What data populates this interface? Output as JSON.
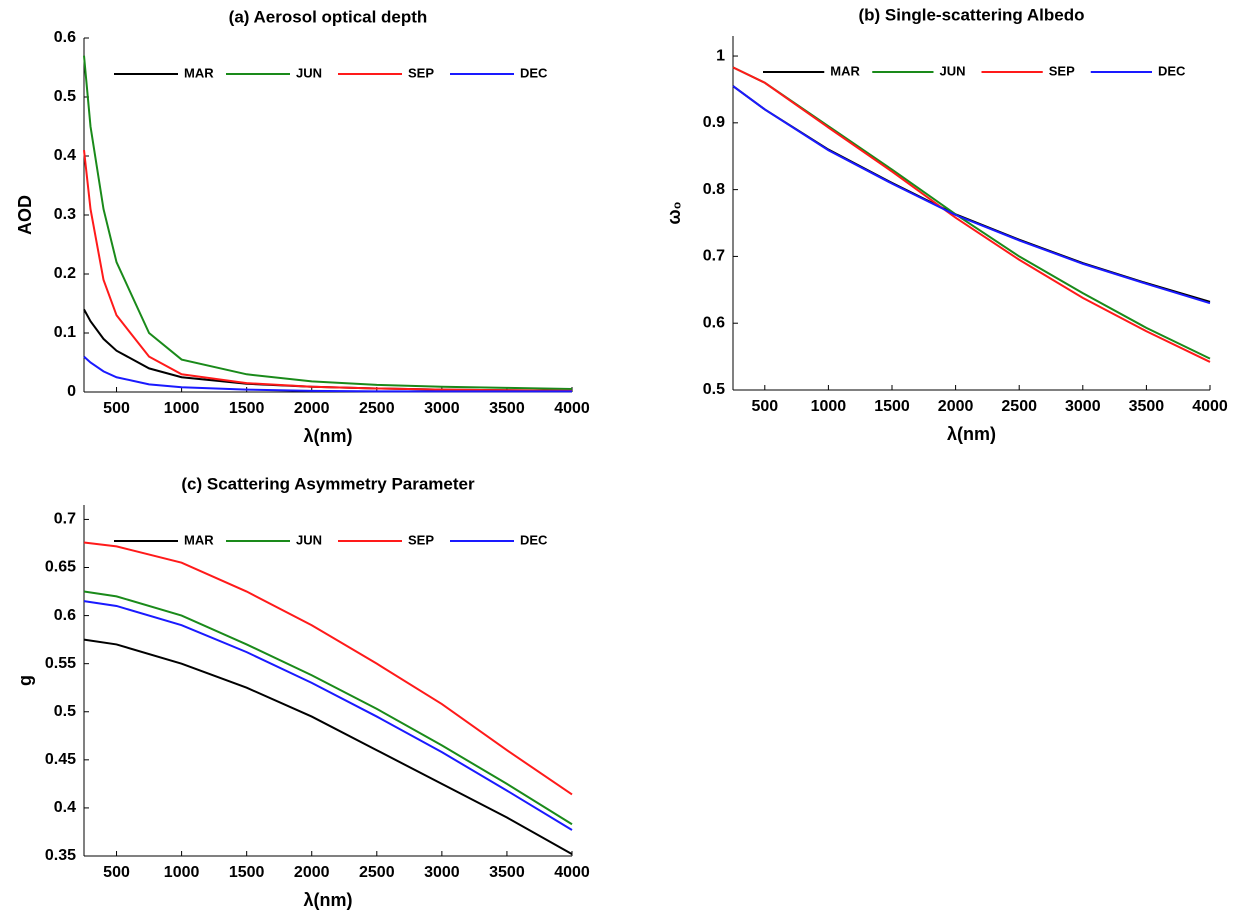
{
  "chart_data": [
    {
      "type": "line",
      "title": "(a) Aerosol optical depth",
      "xlabel": "λ(nm)",
      "ylabel": "AOD",
      "legend": "top",
      "x": [
        250,
        300,
        400,
        500,
        750,
        1000,
        1500,
        2000,
        2500,
        3000,
        3500,
        4000
      ],
      "series": [
        {
          "name": "MAR",
          "color": "#000000",
          "values": [
            0.14,
            0.12,
            0.09,
            0.07,
            0.04,
            0.025,
            0.014,
            0.009,
            0.006,
            0.004,
            0.003,
            0.002
          ]
        },
        {
          "name": "JUN",
          "color": "#1a8a1a",
          "values": [
            0.57,
            0.45,
            0.31,
            0.22,
            0.1,
            0.055,
            0.03,
            0.018,
            0.012,
            0.009,
            0.007,
            0.005
          ]
        },
        {
          "name": "SEP",
          "color": "#ff1a1a",
          "values": [
            0.41,
            0.31,
            0.19,
            0.13,
            0.06,
            0.03,
            0.015,
            0.009,
            0.006,
            0.004,
            0.003,
            0.002
          ]
        },
        {
          "name": "DEC",
          "color": "#1a1aff",
          "values": [
            0.06,
            0.05,
            0.035,
            0.025,
            0.013,
            0.008,
            0.004,
            0.002,
            0.001,
            0.001,
            0.001,
            0.001
          ]
        }
      ],
      "xlim": [
        250,
        4000
      ],
      "ylim": [
        0,
        0.6
      ],
      "xticks": [
        500,
        1000,
        1500,
        2000,
        2500,
        3000,
        3500,
        4000
      ],
      "yticks": [
        0,
        0.1,
        0.2,
        0.3,
        0.4,
        0.5,
        0.6
      ]
    },
    {
      "type": "line",
      "title": "(b)  Single-scattering Albedo",
      "xlabel": "λ(nm)",
      "ylabel": "ω₀",
      "legend": "top",
      "x": [
        250,
        500,
        1000,
        1500,
        2000,
        2500,
        3000,
        3500,
        4000
      ],
      "series": [
        {
          "name": "MAR",
          "color": "#000000",
          "values": [
            0.955,
            0.92,
            0.86,
            0.81,
            0.763,
            0.725,
            0.69,
            0.66,
            0.632
          ]
        },
        {
          "name": "JUN",
          "color": "#1a8a1a",
          "values": [
            0.983,
            0.96,
            0.895,
            0.83,
            0.763,
            0.7,
            0.645,
            0.593,
            0.547
          ]
        },
        {
          "name": "SEP",
          "color": "#ff1a1a",
          "values": [
            0.983,
            0.96,
            0.893,
            0.827,
            0.758,
            0.695,
            0.638,
            0.588,
            0.542
          ]
        },
        {
          "name": "DEC",
          "color": "#1a1aff",
          "values": [
            0.955,
            0.92,
            0.859,
            0.809,
            0.762,
            0.724,
            0.689,
            0.659,
            0.63
          ]
        }
      ],
      "xlim": [
        250,
        4000
      ],
      "ylim": [
        0.5,
        1.03
      ],
      "xticks": [
        500,
        1000,
        1500,
        2000,
        2500,
        3000,
        3500,
        4000
      ],
      "yticks": [
        0.5,
        0.6,
        0.7,
        0.8,
        0.9,
        1
      ]
    },
    {
      "type": "line",
      "title": "(c)  Scattering Asymmetry Parameter",
      "xlabel": "λ(nm)",
      "ylabel": "g",
      "legend": "top",
      "x": [
        250,
        500,
        1000,
        1500,
        2000,
        2500,
        3000,
        3500,
        4000
      ],
      "series": [
        {
          "name": "MAR",
          "color": "#000000",
          "values": [
            0.575,
            0.57,
            0.55,
            0.525,
            0.495,
            0.46,
            0.425,
            0.39,
            0.352
          ]
        },
        {
          "name": "JUN",
          "color": "#1a8a1a",
          "values": [
            0.625,
            0.62,
            0.6,
            0.57,
            0.538,
            0.503,
            0.465,
            0.425,
            0.383
          ]
        },
        {
          "name": "SEP",
          "color": "#ff1a1a",
          "values": [
            0.676,
            0.672,
            0.655,
            0.625,
            0.59,
            0.55,
            0.508,
            0.46,
            0.414
          ]
        },
        {
          "name": "DEC",
          "color": "#1a1aff",
          "values": [
            0.615,
            0.61,
            0.59,
            0.562,
            0.53,
            0.495,
            0.458,
            0.418,
            0.377
          ]
        }
      ],
      "xlim": [
        250,
        4000
      ],
      "ylim": [
        0.35,
        0.715
      ],
      "xticks": [
        500,
        1000,
        1500,
        2000,
        2500,
        3000,
        3500,
        4000
      ],
      "yticks": [
        0.35,
        0.4,
        0.45,
        0.5,
        0.55,
        0.6,
        0.65,
        0.7
      ]
    }
  ]
}
